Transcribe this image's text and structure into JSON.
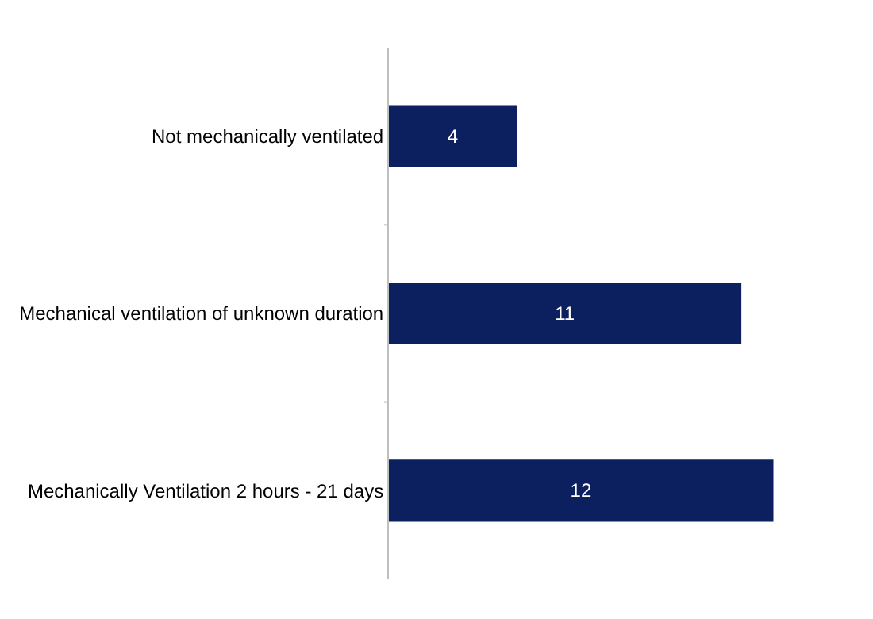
{
  "chart_data": {
    "type": "bar",
    "orientation": "horizontal",
    "categories": [
      "Not mechanically ventilated",
      "Mechanical ventilation of unknown duration",
      "Mechanically Ventilation 2 hours - 21 days"
    ],
    "values": [
      4,
      11,
      12
    ],
    "color": "#0c1f5e",
    "data_labels": true
  }
}
